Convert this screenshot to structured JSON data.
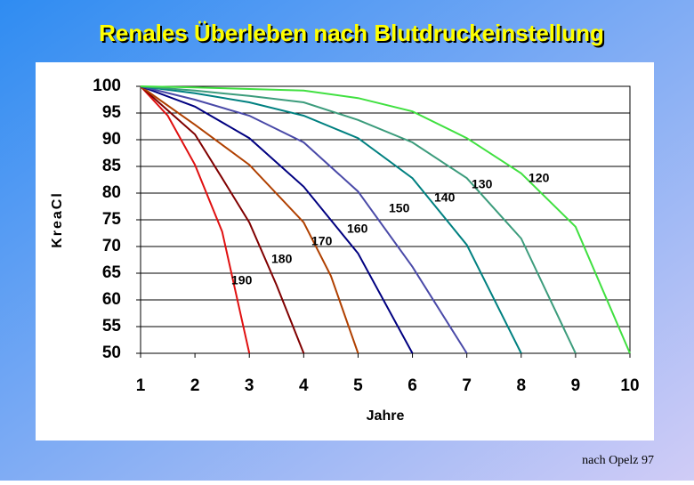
{
  "chart_data": {
    "type": "line",
    "title": "Renales Überleben nach Blutdruckeinstellung",
    "xlabel": "Jahre",
    "ylabel": "KreaCl",
    "footnote": "nach Opelz 97",
    "xlim": [
      1,
      10
    ],
    "xticks": [
      1,
      2,
      3,
      4,
      5,
      6,
      7,
      8,
      9,
      10
    ],
    "ylim": [
      50,
      100
    ],
    "yticks": [
      50,
      55,
      60,
      65,
      70,
      75,
      80,
      85,
      90,
      95,
      100
    ],
    "grid": true,
    "series": [
      {
        "name": "190",
        "color": "#e01010",
        "x": [
          1,
          1.5,
          2,
          2.5,
          3
        ],
        "values": [
          100,
          94.5,
          85.3,
          72.8,
          50
        ]
      },
      {
        "name": "180",
        "color": "#800000",
        "x": [
          1,
          2,
          2.5,
          3,
          3.5,
          4
        ],
        "values": [
          100,
          91,
          82.8,
          74.5,
          62.8,
          50
        ]
      },
      {
        "name": "170",
        "color": "#b04000",
        "x": [
          1,
          2,
          3,
          4,
          4.5,
          5
        ],
        "values": [
          100,
          92.8,
          85.3,
          74.5,
          64.5,
          50
        ]
      },
      {
        "name": "160",
        "color": "#000080",
        "x": [
          1,
          2,
          3,
          4,
          5,
          6
        ],
        "values": [
          100,
          96.2,
          90.3,
          81.2,
          68.7,
          50
        ]
      },
      {
        "name": "150",
        "color": "#4a4aa8",
        "x": [
          1,
          2,
          3,
          4,
          5,
          6,
          7
        ],
        "values": [
          100,
          97.5,
          94.5,
          89.5,
          80.3,
          66.2,
          50
        ]
      },
      {
        "name": "140",
        "color": "#008080",
        "x": [
          1,
          2,
          3,
          4,
          5,
          6,
          7,
          8
        ],
        "values": [
          100,
          98.7,
          97,
          94.5,
          90.3,
          82.8,
          70.3,
          50
        ]
      },
      {
        "name": "130",
        "color": "#3c9c7c",
        "x": [
          1,
          2,
          3,
          4,
          5,
          6,
          7,
          8,
          9
        ],
        "values": [
          100,
          99.2,
          98.2,
          97,
          93.7,
          89.5,
          82.8,
          71.5,
          50
        ]
      },
      {
        "name": "120",
        "color": "#40e040",
        "x": [
          1,
          2,
          4,
          5,
          6,
          7,
          8,
          9,
          10
        ],
        "values": [
          100,
          99.8,
          99.2,
          97.8,
          95.3,
          90.3,
          83.7,
          73.7,
          50
        ]
      }
    ]
  }
}
